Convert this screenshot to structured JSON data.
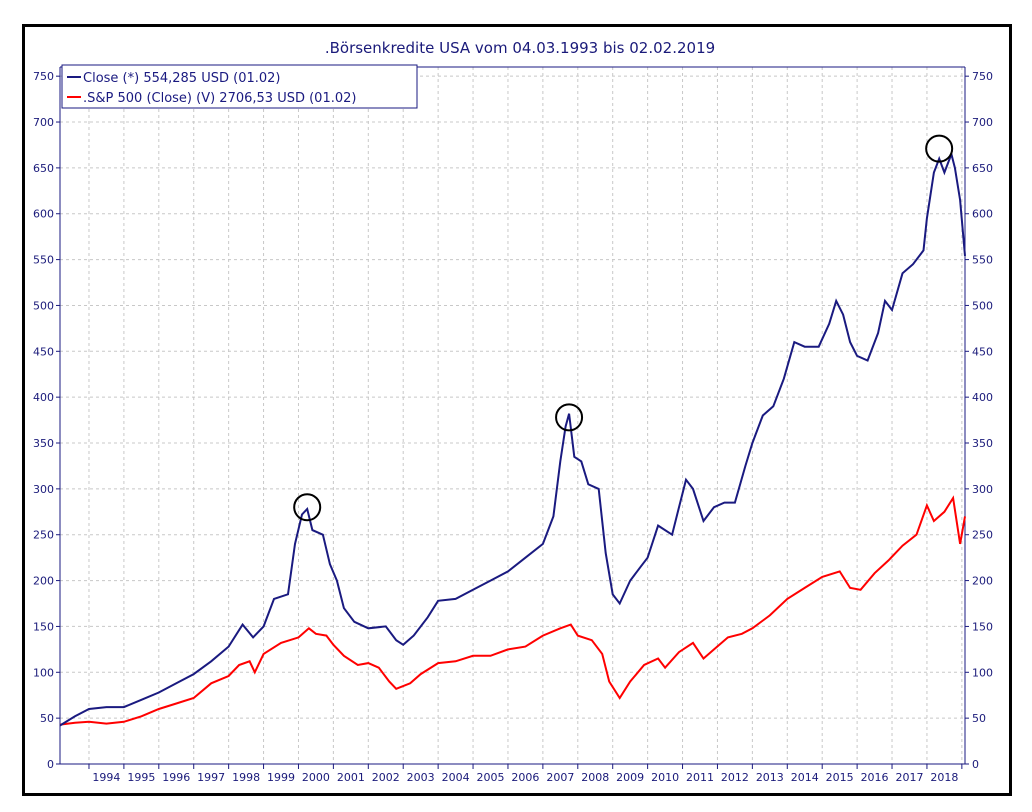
{
  "chart_data": {
    "type": "line",
    "title": ".Börsenkredite USA vom 04.03.1993 bis 02.02.2019",
    "xlabel": "",
    "ylabel": "",
    "xlim": [
      1993.17,
      2019.09
    ],
    "ylim": [
      0,
      760
    ],
    "y_ticks": [
      0,
      50,
      100,
      150,
      200,
      250,
      300,
      350,
      400,
      450,
      500,
      550,
      600,
      650,
      700,
      750
    ],
    "y_tick_labels_left": [
      "0",
      "50",
      "100",
      "150",
      "200",
      "250",
      "300",
      "350",
      "400",
      "450",
      "500",
      "550",
      "600",
      "650",
      "700",
      "750"
    ],
    "y_tick_labels_right": [
      "0",
      "50",
      "100",
      "150",
      "200",
      "250",
      "300",
      "350",
      "400",
      "450",
      "500",
      "550",
      "600",
      "650",
      "700",
      "750"
    ],
    "x_tick_labels": [
      "1994",
      "1995",
      "1996",
      "1997",
      "1998",
      "1999",
      "2000",
      "2001",
      "2002",
      "2003",
      "2004",
      "2005",
      "2006",
      "2007",
      "2008",
      "2009",
      "2010",
      "2011",
      "2012",
      "2013",
      "2014",
      "2015",
      "2016",
      "2017",
      "2018"
    ],
    "grid": true,
    "legend_position": "top-left",
    "series": [
      {
        "name": "Close (*) 554,285 USD (01.02)",
        "color": "#1a1a80",
        "points": [
          [
            1993.17,
            42
          ],
          [
            1993.6,
            52
          ],
          [
            1994.0,
            60
          ],
          [
            1994.5,
            62
          ],
          [
            1995.0,
            62
          ],
          [
            1995.5,
            70
          ],
          [
            1996.0,
            78
          ],
          [
            1996.5,
            88
          ],
          [
            1997.0,
            98
          ],
          [
            1997.5,
            112
          ],
          [
            1998.0,
            128
          ],
          [
            1998.4,
            152
          ],
          [
            1998.7,
            138
          ],
          [
            1999.0,
            150
          ],
          [
            1999.3,
            180
          ],
          [
            1999.7,
            185
          ],
          [
            1999.9,
            240
          ],
          [
            2000.1,
            272
          ],
          [
            2000.25,
            278
          ],
          [
            2000.4,
            255
          ],
          [
            2000.7,
            250
          ],
          [
            2000.9,
            218
          ],
          [
            2001.1,
            200
          ],
          [
            2001.3,
            170
          ],
          [
            2001.6,
            155
          ],
          [
            2002.0,
            148
          ],
          [
            2002.5,
            150
          ],
          [
            2002.8,
            135
          ],
          [
            2003.0,
            130
          ],
          [
            2003.3,
            140
          ],
          [
            2003.7,
            160
          ],
          [
            2004.0,
            178
          ],
          [
            2004.5,
            180
          ],
          [
            2005.0,
            190
          ],
          [
            2005.5,
            200
          ],
          [
            2006.0,
            210
          ],
          [
            2006.5,
            225
          ],
          [
            2007.0,
            240
          ],
          [
            2007.3,
            270
          ],
          [
            2007.5,
            330
          ],
          [
            2007.65,
            368
          ],
          [
            2007.75,
            382
          ],
          [
            2007.9,
            335
          ],
          [
            2008.1,
            330
          ],
          [
            2008.3,
            305
          ],
          [
            2008.6,
            300
          ],
          [
            2008.8,
            230
          ],
          [
            2009.0,
            185
          ],
          [
            2009.2,
            175
          ],
          [
            2009.5,
            200
          ],
          [
            2009.8,
            215
          ],
          [
            2010.0,
            225
          ],
          [
            2010.3,
            260
          ],
          [
            2010.7,
            250
          ],
          [
            2010.9,
            280
          ],
          [
            2011.1,
            310
          ],
          [
            2011.3,
            300
          ],
          [
            2011.6,
            265
          ],
          [
            2011.9,
            280
          ],
          [
            2012.2,
            285
          ],
          [
            2012.5,
            285
          ],
          [
            2012.8,
            325
          ],
          [
            2013.0,
            350
          ],
          [
            2013.3,
            380
          ],
          [
            2013.6,
            390
          ],
          [
            2013.9,
            420
          ],
          [
            2014.2,
            460
          ],
          [
            2014.5,
            455
          ],
          [
            2014.9,
            455
          ],
          [
            2015.2,
            480
          ],
          [
            2015.4,
            505
          ],
          [
            2015.6,
            490
          ],
          [
            2015.8,
            460
          ],
          [
            2016.0,
            445
          ],
          [
            2016.3,
            440
          ],
          [
            2016.6,
            470
          ],
          [
            2016.8,
            505
          ],
          [
            2017.0,
            495
          ],
          [
            2017.3,
            535
          ],
          [
            2017.6,
            545
          ],
          [
            2017.9,
            560
          ],
          [
            2018.0,
            595
          ],
          [
            2018.2,
            645
          ],
          [
            2018.35,
            660
          ],
          [
            2018.5,
            645
          ],
          [
            2018.7,
            665
          ],
          [
            2018.8,
            650
          ],
          [
            2018.95,
            615
          ],
          [
            2019.09,
            554
          ]
        ]
      },
      {
        "name": ".S&P 500 (Close) (V) 2706,53 USD (01.02)",
        "color": "#ff0000",
        "points": [
          [
            1993.17,
            43
          ],
          [
            1993.6,
            45
          ],
          [
            1994.0,
            46
          ],
          [
            1994.5,
            44
          ],
          [
            1995.0,
            46
          ],
          [
            1995.5,
            52
          ],
          [
            1996.0,
            60
          ],
          [
            1996.5,
            66
          ],
          [
            1997.0,
            72
          ],
          [
            1997.5,
            88
          ],
          [
            1998.0,
            96
          ],
          [
            1998.3,
            108
          ],
          [
            1998.6,
            112
          ],
          [
            1998.75,
            100
          ],
          [
            1999.0,
            120
          ],
          [
            1999.5,
            132
          ],
          [
            2000.0,
            138
          ],
          [
            2000.3,
            148
          ],
          [
            2000.5,
            142
          ],
          [
            2000.8,
            140
          ],
          [
            2001.0,
            130
          ],
          [
            2001.3,
            118
          ],
          [
            2001.7,
            108
          ],
          [
            2002.0,
            110
          ],
          [
            2002.3,
            105
          ],
          [
            2002.6,
            90
          ],
          [
            2002.8,
            82
          ],
          [
            2003.2,
            88
          ],
          [
            2003.5,
            98
          ],
          [
            2004.0,
            110
          ],
          [
            2004.5,
            112
          ],
          [
            2005.0,
            118
          ],
          [
            2005.5,
            118
          ],
          [
            2006.0,
            125
          ],
          [
            2006.5,
            128
          ],
          [
            2007.0,
            140
          ],
          [
            2007.5,
            148
          ],
          [
            2007.8,
            152
          ],
          [
            2008.0,
            140
          ],
          [
            2008.4,
            135
          ],
          [
            2008.7,
            120
          ],
          [
            2008.9,
            90
          ],
          [
            2009.2,
            72
          ],
          [
            2009.5,
            90
          ],
          [
            2009.9,
            108
          ],
          [
            2010.3,
            115
          ],
          [
            2010.5,
            105
          ],
          [
            2010.9,
            122
          ],
          [
            2011.3,
            132
          ],
          [
            2011.6,
            115
          ],
          [
            2011.9,
            125
          ],
          [
            2012.3,
            138
          ],
          [
            2012.7,
            142
          ],
          [
            2013.0,
            148
          ],
          [
            2013.5,
            162
          ],
          [
            2014.0,
            180
          ],
          [
            2014.5,
            192
          ],
          [
            2015.0,
            204
          ],
          [
            2015.5,
            210
          ],
          [
            2015.8,
            192
          ],
          [
            2016.1,
            190
          ],
          [
            2016.5,
            208
          ],
          [
            2016.9,
            222
          ],
          [
            2017.3,
            238
          ],
          [
            2017.7,
            250
          ],
          [
            2018.0,
            282
          ],
          [
            2018.2,
            265
          ],
          [
            2018.5,
            275
          ],
          [
            2018.75,
            290
          ],
          [
            2018.95,
            240
          ],
          [
            2019.09,
            270
          ]
        ]
      }
    ],
    "annotations": [
      {
        "type": "circle",
        "x": 2000.25,
        "y": 280
      },
      {
        "type": "circle",
        "x": 2007.75,
        "y": 378
      },
      {
        "type": "circle",
        "x": 2018.35,
        "y": 671
      }
    ]
  }
}
